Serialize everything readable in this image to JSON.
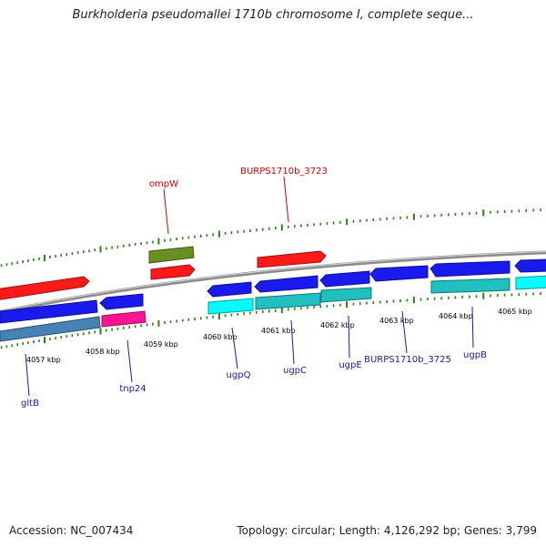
{
  "title": "Burkholderia pseudomallei 1710b chromosome I, complete seque...",
  "footer": {
    "accession": "Accession: NC_007434",
    "summary": "Topology: circular; Length: 4,126,292 bp; Genes: 3,799"
  },
  "colors": {
    "backbone": "#8c8c8c",
    "tick_top": "#2e7d1e",
    "tick_bottom": "#2e7d1e",
    "label_red": "#cc0000",
    "label_blue": "#1a1aa6",
    "scale_text": "#000000"
  },
  "scale_labels": [
    {
      "text": "4057 kbp",
      "id": "4057"
    },
    {
      "text": "4058 kbp",
      "id": "4058"
    },
    {
      "text": "4059 kbp",
      "id": "4059"
    },
    {
      "text": "4060 kbp",
      "id": "4060"
    },
    {
      "text": "4061 kbp",
      "id": "4061"
    },
    {
      "text": "4062 kbp",
      "id": "4062"
    },
    {
      "text": "4063 kbp",
      "id": "4063"
    },
    {
      "text": "4064 kbp",
      "id": "4064"
    },
    {
      "text": "4065 kbp",
      "id": "4065"
    }
  ],
  "gene_labels": [
    {
      "text": "ompW",
      "color": "red"
    },
    {
      "text": "BURPS1710b_3723",
      "color": "red"
    },
    {
      "text": "gltB",
      "color": "blue"
    },
    {
      "text": "tnp24",
      "color": "blue"
    },
    {
      "text": "ugpQ",
      "color": "blue"
    },
    {
      "text": "ugpC",
      "color": "blue"
    },
    {
      "text": "ugpE",
      "color": "blue"
    },
    {
      "text": "BURPS1710b_3725",
      "color": "blue"
    },
    {
      "text": "ugpB",
      "color": "blue"
    }
  ],
  "feature_colors": {
    "red": "#ff1a1a",
    "olive": "#6b8e23",
    "blue": "#1a1aee",
    "steel": "#4682b4",
    "magenta": "#ff1493",
    "cyan": "#00ffff",
    "teal": "#20c0c0"
  }
}
